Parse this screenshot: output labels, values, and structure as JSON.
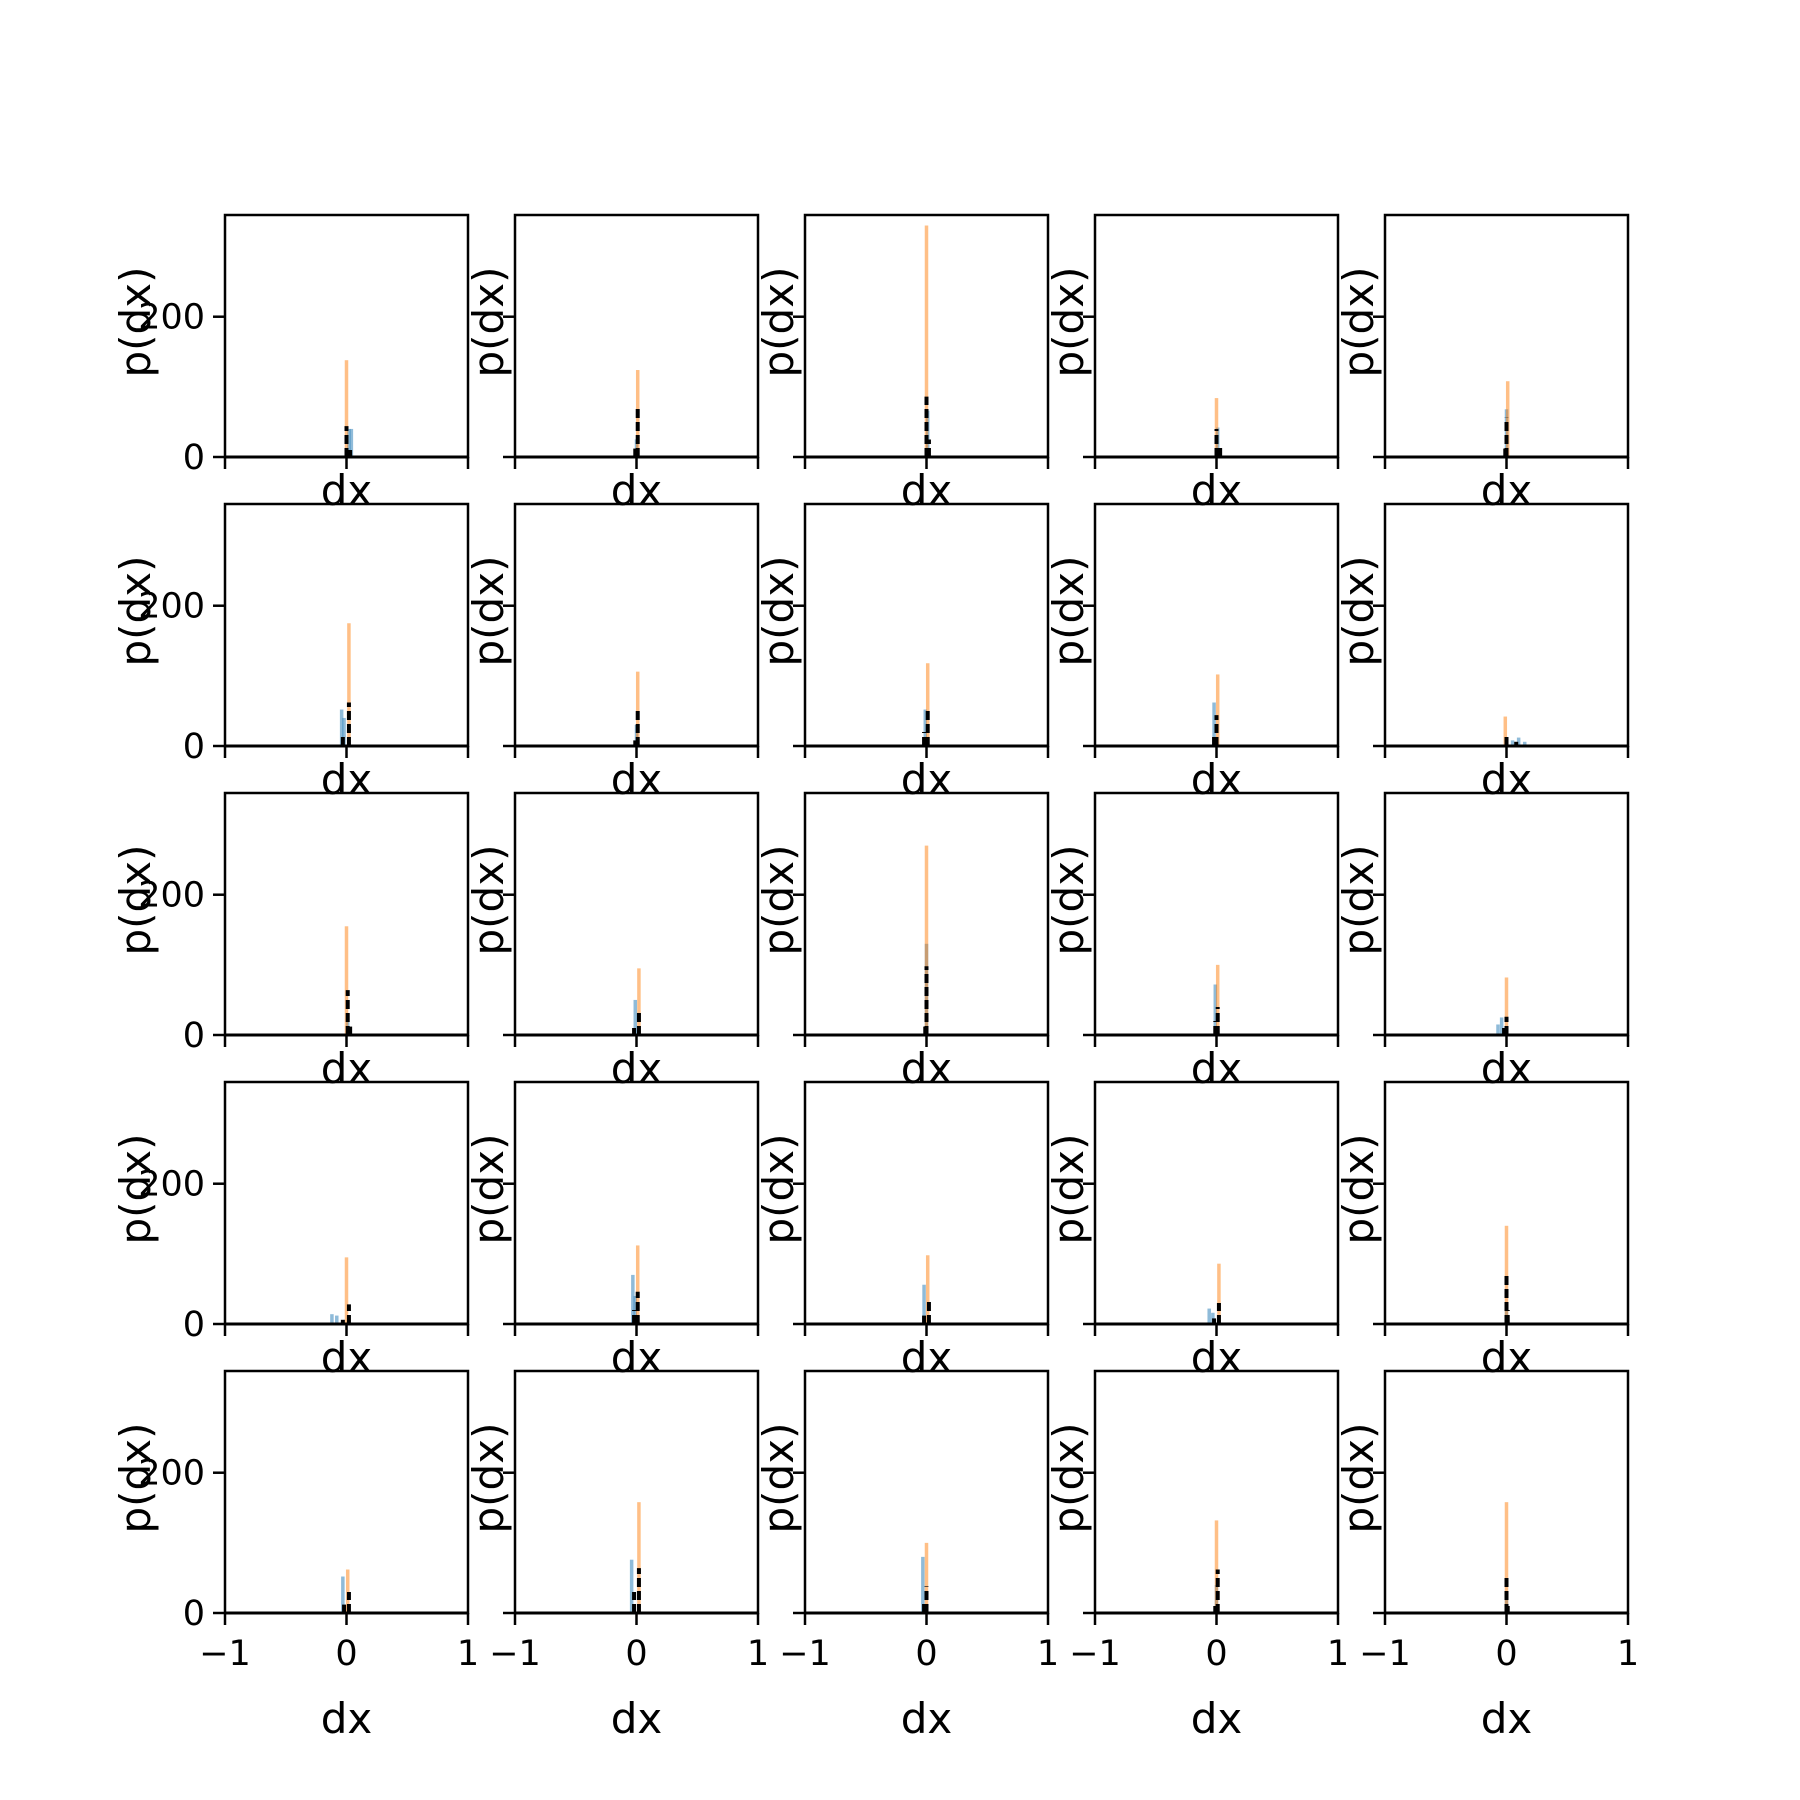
{
  "chart_data": {
    "type": "bar",
    "grid": {
      "rows": 5,
      "cols": 5
    },
    "xlabel": "dx",
    "ylabel": "p(dx)",
    "xlim": [
      -1,
      1
    ],
    "ylim": [
      0,
      345
    ],
    "xticks": [
      -1,
      0,
      1
    ],
    "xtick_labels": [
      "−1",
      "0",
      "1"
    ],
    "yticks": [
      0,
      200
    ],
    "ytick_labels": [
      "0",
      "200"
    ],
    "grid_lines": false,
    "legend": "none",
    "series_colors": {
      "blue": "#1f77b4",
      "orange": "#ff7f0e",
      "black": "#000000"
    },
    "subplots": [
      {
        "blue": [
          {
            "x": 0.02,
            "y": 40
          },
          {
            "x": 0.04,
            "y": 40
          }
        ],
        "orange": [
          {
            "x": 0.0,
            "y": 138
          }
        ],
        "black": [
          {
            "x": 0.0,
            "y": 44
          },
          {
            "x": 0.03,
            "y": 10
          }
        ]
      },
      {
        "blue": [
          {
            "x": 0.0,
            "y": 25
          }
        ],
        "orange": [
          {
            "x": 0.01,
            "y": 124
          }
        ],
        "black": [
          {
            "x": 0.01,
            "y": 70
          },
          {
            "x": -0.01,
            "y": 12
          }
        ]
      },
      {
        "blue": [
          {
            "x": 0.01,
            "y": 66
          }
        ],
        "orange": [
          {
            "x": 0.0,
            "y": 330
          }
        ],
        "black": [
          {
            "x": 0.0,
            "y": 86
          },
          {
            "x": 0.02,
            "y": 25
          }
        ]
      },
      {
        "blue": [
          {
            "x": 0.01,
            "y": 42
          }
        ],
        "orange": [
          {
            "x": 0.0,
            "y": 84
          }
        ],
        "black": [
          {
            "x": 0.0,
            "y": 40
          },
          {
            "x": 0.03,
            "y": 18
          }
        ]
      },
      {
        "blue": [
          {
            "x": 0.0,
            "y": 68
          }
        ],
        "orange": [
          {
            "x": 0.01,
            "y": 108
          }
        ],
        "black": [
          {
            "x": 0.0,
            "y": 56
          },
          {
            "x": -0.01,
            "y": 12
          }
        ]
      },
      {
        "blue": [
          {
            "x": -0.04,
            "y": 52
          },
          {
            "x": -0.02,
            "y": 40
          }
        ],
        "orange": [
          {
            "x": 0.02,
            "y": 175
          }
        ],
        "black": [
          {
            "x": 0.02,
            "y": 62
          },
          {
            "x": -0.03,
            "y": 15
          }
        ]
      },
      {
        "blue": [
          {
            "x": 0.0,
            "y": 30
          }
        ],
        "orange": [
          {
            "x": 0.01,
            "y": 106
          }
        ],
        "black": [
          {
            "x": 0.01,
            "y": 52
          },
          {
            "x": -0.01,
            "y": 8
          }
        ]
      },
      {
        "blue": [
          {
            "x": -0.01,
            "y": 52
          }
        ],
        "orange": [
          {
            "x": 0.01,
            "y": 118
          }
        ],
        "black": [
          {
            "x": 0.01,
            "y": 52
          },
          {
            "x": -0.02,
            "y": 20
          }
        ]
      },
      {
        "blue": [
          {
            "x": -0.02,
            "y": 62
          }
        ],
        "orange": [
          {
            "x": 0.01,
            "y": 102
          }
        ],
        "black": [
          {
            "x": 0.0,
            "y": 44
          },
          {
            "x": -0.02,
            "y": 15
          }
        ]
      },
      {
        "blue": [
          {
            "x": 0.05,
            "y": 8
          },
          {
            "x": 0.1,
            "y": 12
          },
          {
            "x": 0.15,
            "y": 6
          }
        ],
        "orange": [
          {
            "x": -0.01,
            "y": 42
          }
        ],
        "black": [
          {
            "x": 0.0,
            "y": 18
          },
          {
            "x": 0.08,
            "y": 6
          }
        ]
      },
      {
        "blue": [
          {
            "x": 0.01,
            "y": 28
          }
        ],
        "orange": [
          {
            "x": 0.0,
            "y": 155
          }
        ],
        "black": [
          {
            "x": 0.01,
            "y": 64
          },
          {
            "x": 0.03,
            "y": 12
          }
        ]
      },
      {
        "blue": [
          {
            "x": -0.01,
            "y": 50
          }
        ],
        "orange": [
          {
            "x": 0.02,
            "y": 95
          }
        ],
        "black": [
          {
            "x": 0.02,
            "y": 36
          },
          {
            "x": -0.02,
            "y": 10
          }
        ]
      },
      {
        "blue": [
          {
            "x": 0.0,
            "y": 130
          }
        ],
        "orange": [
          {
            "x": 0.0,
            "y": 270
          }
        ],
        "black": [
          {
            "x": 0.0,
            "y": 98
          },
          {
            "x": -0.01,
            "y": 12
          }
        ]
      },
      {
        "blue": [
          {
            "x": -0.01,
            "y": 72
          }
        ],
        "orange": [
          {
            "x": 0.01,
            "y": 100
          }
        ],
        "black": [
          {
            "x": 0.01,
            "y": 40
          },
          {
            "x": -0.01,
            "y": 20
          }
        ]
      },
      {
        "blue": [
          {
            "x": -0.07,
            "y": 15
          },
          {
            "x": -0.04,
            "y": 25
          }
        ],
        "orange": [
          {
            "x": 0.0,
            "y": 82
          }
        ],
        "black": [
          {
            "x": 0.0,
            "y": 26
          },
          {
            "x": -0.02,
            "y": 10
          }
        ]
      },
      {
        "blue": [
          {
            "x": -0.12,
            "y": 14
          },
          {
            "x": -0.08,
            "y": 12
          }
        ],
        "orange": [
          {
            "x": 0.0,
            "y": 95
          }
        ],
        "black": [
          {
            "x": 0.02,
            "y": 28
          },
          {
            "x": -0.03,
            "y": 6
          }
        ]
      },
      {
        "blue": [
          {
            "x": -0.03,
            "y": 70
          },
          {
            "x": -0.01,
            "y": 40
          }
        ],
        "orange": [
          {
            "x": 0.01,
            "y": 112
          }
        ],
        "black": [
          {
            "x": 0.01,
            "y": 46
          },
          {
            "x": -0.02,
            "y": 20
          }
        ]
      },
      {
        "blue": [
          {
            "x": -0.02,
            "y": 56
          }
        ],
        "orange": [
          {
            "x": 0.01,
            "y": 98
          }
        ],
        "black": [
          {
            "x": 0.02,
            "y": 34
          },
          {
            "x": -0.02,
            "y": 12
          }
        ]
      },
      {
        "blue": [
          {
            "x": -0.06,
            "y": 22
          },
          {
            "x": -0.03,
            "y": 16
          }
        ],
        "orange": [
          {
            "x": 0.02,
            "y": 86
          }
        ],
        "black": [
          {
            "x": 0.02,
            "y": 30
          },
          {
            "x": -0.02,
            "y": 8
          }
        ]
      },
      {
        "blue": [
          {
            "x": 0.0,
            "y": 30
          }
        ],
        "orange": [
          {
            "x": 0.0,
            "y": 140
          }
        ],
        "black": [
          {
            "x": 0.0,
            "y": 72
          },
          {
            "x": 0.01,
            "y": 20
          }
        ]
      },
      {
        "blue": [
          {
            "x": -0.03,
            "y": 52
          }
        ],
        "orange": [
          {
            "x": 0.01,
            "y": 62
          }
        ],
        "black": [
          {
            "x": 0.02,
            "y": 30
          },
          {
            "x": -0.02,
            "y": 12
          }
        ]
      },
      {
        "blue": [
          {
            "x": -0.04,
            "y": 76
          }
        ],
        "orange": [
          {
            "x": 0.02,
            "y": 158
          }
        ],
        "black": [
          {
            "x": 0.02,
            "y": 64
          },
          {
            "x": -0.02,
            "y": 30
          }
        ]
      },
      {
        "blue": [
          {
            "x": -0.03,
            "y": 80
          }
        ],
        "orange": [
          {
            "x": 0.0,
            "y": 100
          }
        ],
        "black": [
          {
            "x": 0.0,
            "y": 38
          },
          {
            "x": -0.02,
            "y": 15
          }
        ]
      },
      {
        "blue": [
          {
            "x": 0.0,
            "y": 40
          }
        ],
        "orange": [
          {
            "x": 0.0,
            "y": 132
          }
        ],
        "black": [
          {
            "x": 0.01,
            "y": 62
          },
          {
            "x": -0.01,
            "y": 10
          }
        ]
      },
      {
        "blue": [
          {
            "x": 0.0,
            "y": 25
          }
        ],
        "orange": [
          {
            "x": 0.0,
            "y": 158
          }
        ],
        "black": [
          {
            "x": 0.0,
            "y": 55
          },
          {
            "x": 0.01,
            "y": 10
          }
        ]
      }
    ]
  }
}
